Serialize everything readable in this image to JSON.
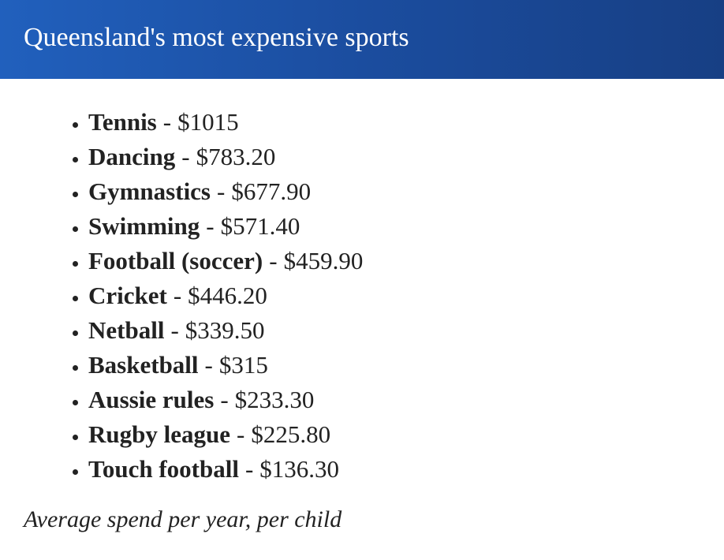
{
  "header": {
    "title": "Queensland's most expensive sports"
  },
  "list": {
    "separator": "-",
    "items": [
      {
        "name": "Tennis",
        "price": "$1015"
      },
      {
        "name": "Dancing",
        "price": "$783.20"
      },
      {
        "name": "Gymnastics",
        "price": "$677.90"
      },
      {
        "name": "Swimming",
        "price": "$571.40"
      },
      {
        "name": "Football (soccer)",
        "price": "$459.90"
      },
      {
        "name": "Cricket",
        "price": "$446.20"
      },
      {
        "name": "Netball",
        "price": "$339.50"
      },
      {
        "name": "Basketball",
        "price": "$315"
      },
      {
        "name": "Aussie rules",
        "price": "$233.30"
      },
      {
        "name": "Rugby league",
        "price": "$225.80"
      },
      {
        "name": "Touch football",
        "price": "$136.30"
      }
    ]
  },
  "footnote": "Average spend per year, per child"
}
